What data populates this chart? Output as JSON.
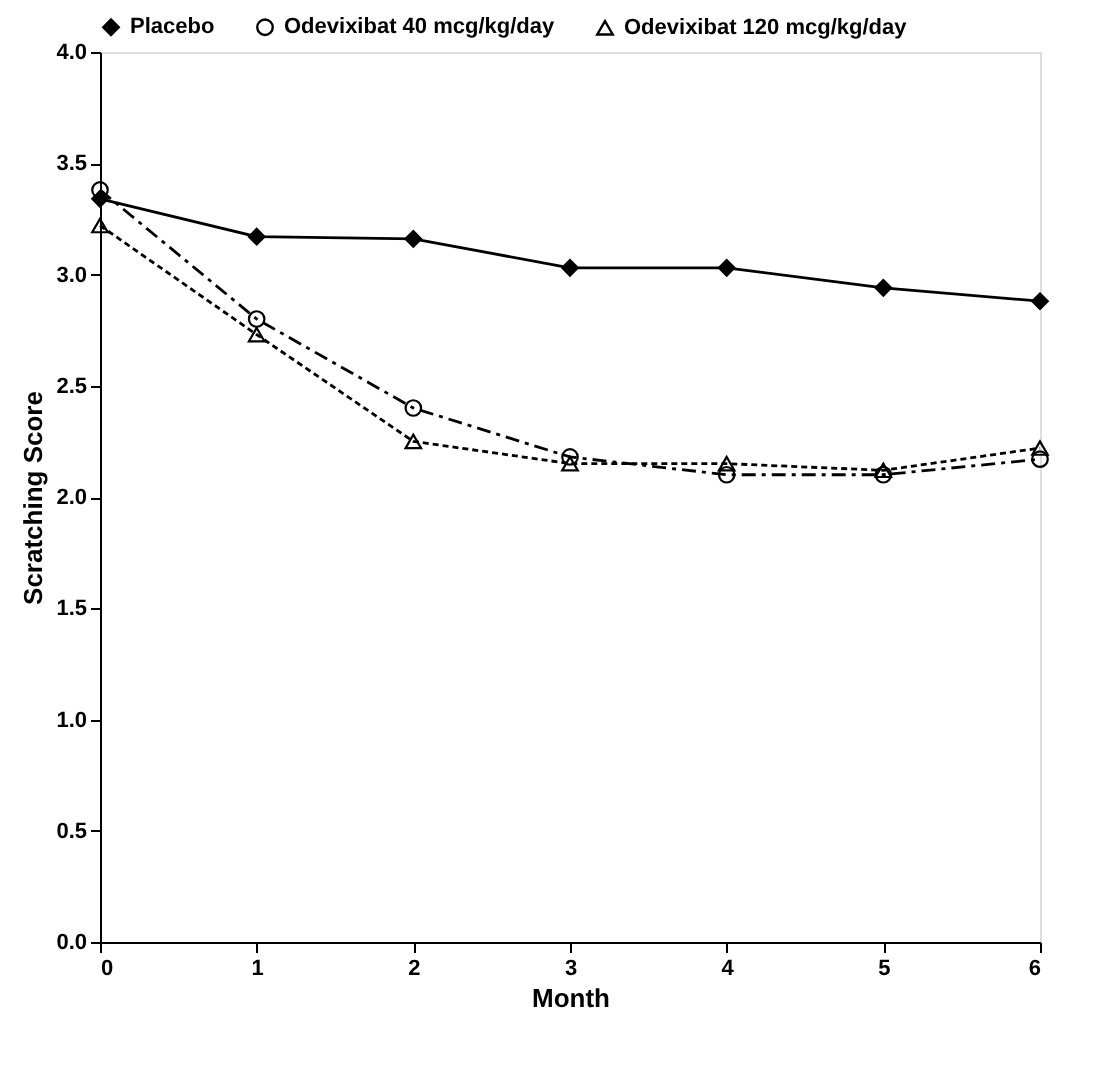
{
  "chart_data": {
    "type": "line",
    "xlabel": "Month",
    "ylabel": "Scratching Score",
    "x": [
      0,
      1,
      2,
      3,
      4,
      5,
      6
    ],
    "series": [
      {
        "name": "Placebo",
        "color": "#000000",
        "marker": "diamond",
        "line_style": "solid",
        "values": [
          3.34,
          3.17,
          3.16,
          3.03,
          3.03,
          2.94,
          2.88
        ]
      },
      {
        "name": "Odevixibat 40 mcg/kg/day",
        "color": "#000000",
        "marker": "circle",
        "line_style": "dashed",
        "values": [
          3.38,
          2.8,
          2.4,
          2.18,
          2.1,
          2.1,
          2.17
        ]
      },
      {
        "name": "Odevixibat 120 mcg/kg/day",
        "color": "#000000",
        "marker": "triangle",
        "line_style": "dotted",
        "values": [
          3.22,
          2.73,
          2.25,
          2.15,
          2.15,
          2.12,
          2.22
        ]
      }
    ],
    "xlim": [
      0,
      6
    ],
    "xticks": [
      0,
      1,
      2,
      3,
      4,
      5,
      6
    ],
    "ylim": [
      0,
      4
    ],
    "yticks": [
      {
        "value": 0,
        "label": "0.0"
      },
      0.5,
      {
        "value": 1,
        "label": "1.0"
      },
      1.5,
      {
        "value": 2,
        "label": "2.0"
      },
      2.5,
      {
        "value": 3,
        "label": "3.0"
      },
      3.5,
      {
        "value": 4,
        "label": "4.0"
      }
    ],
    "grid": false,
    "legend": "top"
  }
}
